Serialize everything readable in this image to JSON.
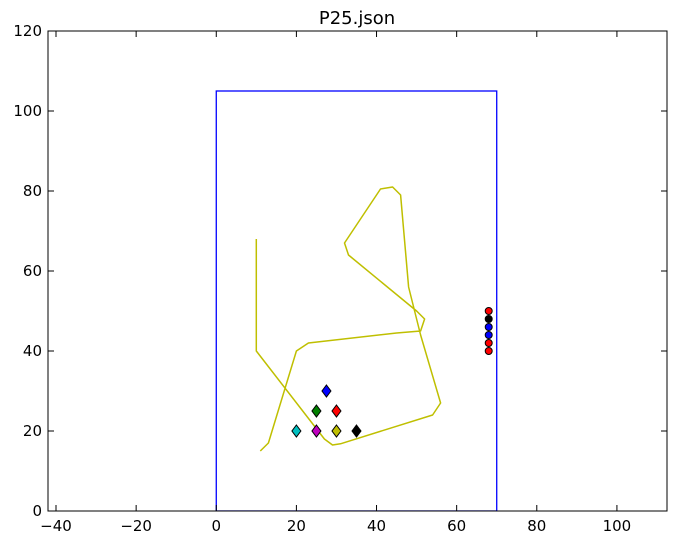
{
  "chart_data": {
    "type": "scatter",
    "title": "P25.json",
    "xlabel": "",
    "ylabel": "",
    "xlim": [
      -42,
      112.5
    ],
    "ylim": [
      0,
      120
    ],
    "xticks": [
      -40,
      -20,
      0,
      20,
      40,
      60,
      80,
      100
    ],
    "xtick_labels": [
      "−40",
      "−20",
      "0",
      "20",
      "40",
      "60",
      "80",
      "100"
    ],
    "yticks": [
      0,
      20,
      40,
      60,
      80,
      100,
      120
    ],
    "ytick_labels": [
      "0",
      "20",
      "40",
      "60",
      "80",
      "100",
      "120"
    ],
    "grid": false,
    "field_rect": {
      "x0": 0,
      "y0": 0,
      "x1": 70,
      "y1": 105,
      "color": "#0000ff"
    },
    "path": {
      "color": "#bfbf00",
      "points": [
        [
          10,
          68
        ],
        [
          10,
          40
        ],
        [
          27,
          18
        ],
        [
          29,
          16.5
        ],
        [
          31,
          16.8
        ],
        [
          54,
          24
        ],
        [
          56,
          27
        ],
        [
          51,
          44
        ],
        [
          48,
          56
        ],
        [
          46,
          79
        ],
        [
          44,
          81
        ],
        [
          41,
          80.5
        ],
        [
          32,
          67
        ],
        [
          33,
          64
        ],
        [
          50,
          50
        ],
        [
          52,
          48
        ],
        [
          51,
          45
        ],
        [
          45,
          44.5
        ],
        [
          23,
          42
        ],
        [
          20,
          40
        ],
        [
          13,
          17
        ],
        [
          11,
          15
        ]
      ]
    },
    "diamonds": [
      {
        "x": 27.5,
        "y": 30,
        "color": "#0000ff"
      },
      {
        "x": 25,
        "y": 25,
        "color": "#008000"
      },
      {
        "x": 30,
        "y": 25,
        "color": "#ff0000"
      },
      {
        "x": 20,
        "y": 20,
        "color": "#00bfbf"
      },
      {
        "x": 25,
        "y": 20,
        "color": "#bf00bf"
      },
      {
        "x": 30,
        "y": 20,
        "color": "#bfbf00"
      },
      {
        "x": 35,
        "y": 20,
        "color": "#000000"
      }
    ],
    "circles": [
      {
        "x": 68,
        "y": 50,
        "color": "#ff0000"
      },
      {
        "x": 68,
        "y": 48,
        "color": "#000000"
      },
      {
        "x": 68,
        "y": 46,
        "color": "#0000ff"
      },
      {
        "x": 68,
        "y": 44,
        "color": "#0000ff"
      },
      {
        "x": 68,
        "y": 42,
        "color": "#ff0000"
      },
      {
        "x": 68,
        "y": 40,
        "color": "#ff0000"
      }
    ]
  }
}
